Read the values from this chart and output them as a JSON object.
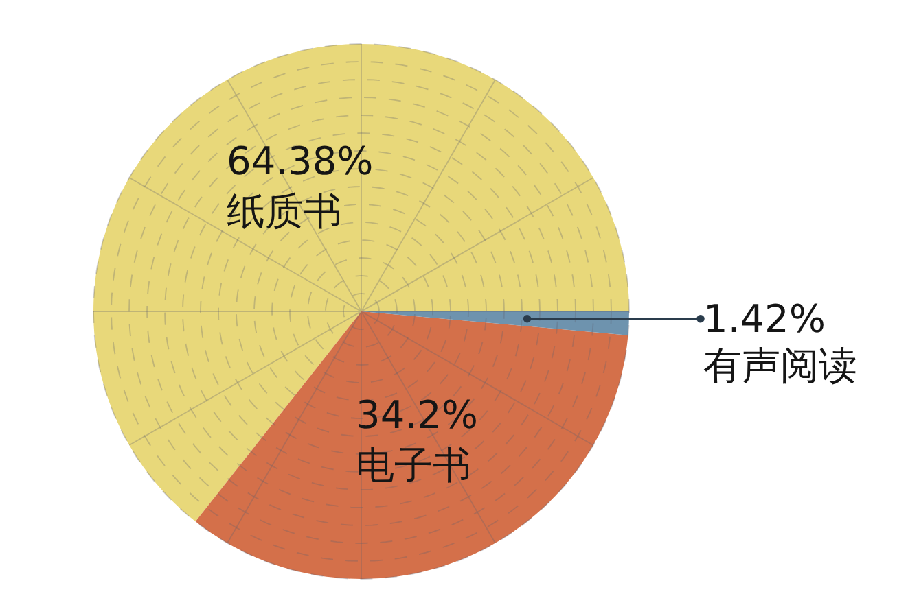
{
  "chart_data": {
    "type": "pie",
    "categories": [
      "纸质书",
      "电子书",
      "有声阅读"
    ],
    "values": [
      64.38,
      34.2,
      1.42
    ],
    "value_labels": [
      "64.38%",
      "34.2%",
      "1.42%"
    ],
    "colors": [
      "#e8d87a",
      "#d4704a",
      "#6e93ae"
    ],
    "grid": true
  }
}
